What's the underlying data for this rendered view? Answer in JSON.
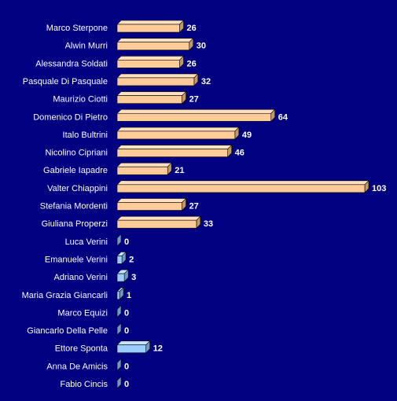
{
  "chart_data": {
    "type": "bar",
    "orientation": "horizontal",
    "style": "3d",
    "background_color": "#000080",
    "text_color": "#ffffff",
    "colors": {
      "orange_front": "#ffcc99",
      "orange_top": "#ffe0bf",
      "orange_side": "#c09870",
      "blue_front": "#99ccff",
      "blue_top": "#c6e2ff",
      "blue_side": "#6f98c4",
      "outline": "#000000"
    },
    "categories": [
      "Marco Sterpone",
      "Alwin Murri",
      "Alessandra Soldati",
      "Pasquale Di Pasquale",
      "Maurizio Ciotti",
      "Domenico Di Pietro",
      "Italo Bultrini",
      "Nicolino Cipriani",
      "Gabriele Iapadre",
      "Valter Chiappini",
      "Stefania Mordenti",
      "Giuliana Properzi",
      "Luca Verini",
      "Emanuele Verini",
      "Adriano Verini",
      "Maria Grazia Giancarli",
      "Marco Equizi",
      "Giancarlo Della Pelle",
      "Ettore Sponta",
      "Anna De Amicis",
      "Fabio Cincis"
    ],
    "values": [
      26,
      30,
      26,
      32,
      27,
      64,
      49,
      46,
      21,
      103,
      27,
      33,
      0,
      2,
      3,
      1,
      0,
      0,
      12,
      0,
      0
    ],
    "value_labels": [
      "26",
      "30",
      "26",
      "32",
      "27",
      "64",
      "49",
      "46",
      "21",
      "103",
      "27",
      "33",
      "0",
      "2",
      "3",
      "1",
      "0",
      "0",
      "12",
      "0",
      "0"
    ],
    "bar_groups": [
      "orange",
      "orange",
      "orange",
      "orange",
      "orange",
      "orange",
      "orange",
      "orange",
      "orange",
      "orange",
      "orange",
      "orange",
      "blue",
      "blue",
      "blue",
      "blue",
      "blue",
      "blue",
      "blue",
      "blue",
      "blue"
    ],
    "xlim": [
      0,
      103
    ],
    "grid": false,
    "legend": false
  }
}
